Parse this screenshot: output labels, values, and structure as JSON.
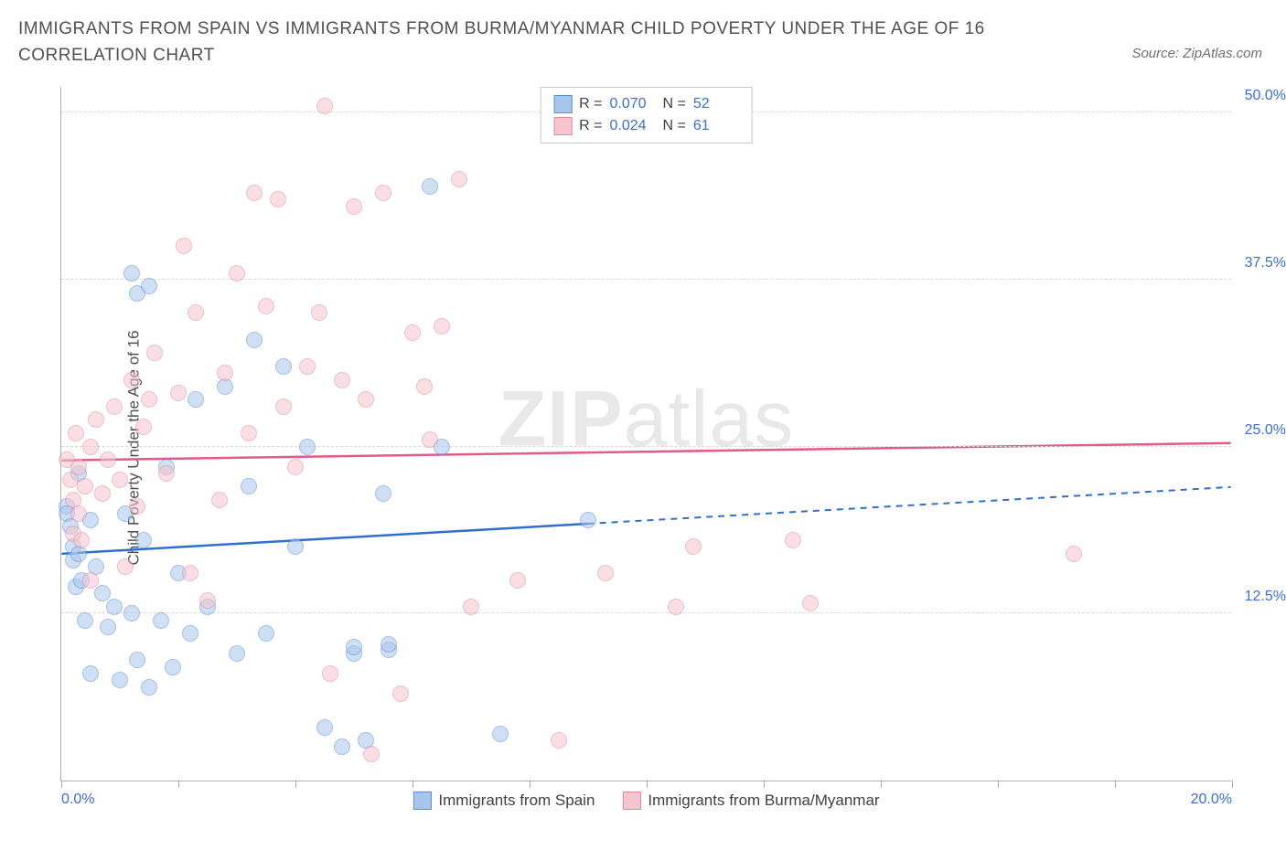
{
  "title": "IMMIGRANTS FROM SPAIN VS IMMIGRANTS FROM BURMA/MYANMAR CHILD POVERTY UNDER THE AGE OF 16 CORRELATION CHART",
  "source": "Source: ZipAtlas.com",
  "ylabel": "Child Poverty Under the Age of 16",
  "watermark_a": "ZIP",
  "watermark_b": "atlas",
  "chart": {
    "type": "scatter",
    "background_color": "#ffffff",
    "grid_color": "#d8d8d8",
    "axis_color": "#b0b0b0",
    "xlim": [
      0,
      20
    ],
    "ylim": [
      0,
      52
    ],
    "x_ticks": [
      0,
      2,
      4,
      6,
      8,
      10,
      12,
      14,
      16,
      18,
      20
    ],
    "x_tick_labels": {
      "0": "0.0%",
      "20": "20.0%"
    },
    "y_gridlines": [
      12.5,
      25,
      37.5,
      50
    ],
    "y_tick_labels": [
      "12.5%",
      "25.0%",
      "37.5%",
      "50.0%"
    ],
    "marker_radius": 9,
    "marker_opacity": 0.55,
    "label_color": "#3b6fd6",
    "series": [
      {
        "name": "Immigrants from Spain",
        "fill": "#a8c5ec",
        "stroke": "#5a8fd6",
        "trend_color": "#2f6fd0",
        "trend_y0": 17.0,
        "trend_y1": 22.0,
        "trend_solid_until": 9.0,
        "R": "0.070",
        "N": "52",
        "points": [
          [
            0.1,
            20.5
          ],
          [
            0.1,
            20.0
          ],
          [
            0.15,
            19.0
          ],
          [
            0.2,
            16.5
          ],
          [
            0.2,
            17.5
          ],
          [
            0.25,
            14.5
          ],
          [
            0.3,
            23.0
          ],
          [
            0.3,
            17.0
          ],
          [
            0.35,
            15.0
          ],
          [
            0.4,
            12.0
          ],
          [
            0.5,
            19.5
          ],
          [
            0.5,
            8.0
          ],
          [
            0.6,
            16.0
          ],
          [
            0.7,
            14.0
          ],
          [
            0.8,
            11.5
          ],
          [
            0.9,
            13.0
          ],
          [
            1.0,
            7.5
          ],
          [
            1.1,
            20.0
          ],
          [
            1.2,
            12.5
          ],
          [
            1.2,
            38.0
          ],
          [
            1.3,
            36.5
          ],
          [
            1.3,
            9.0
          ],
          [
            1.4,
            18.0
          ],
          [
            1.5,
            7.0
          ],
          [
            1.5,
            37.0
          ],
          [
            1.7,
            12.0
          ],
          [
            1.8,
            23.5
          ],
          [
            1.9,
            8.5
          ],
          [
            2.0,
            15.5
          ],
          [
            2.2,
            11.0
          ],
          [
            2.3,
            28.5
          ],
          [
            2.5,
            13.0
          ],
          [
            2.8,
            29.5
          ],
          [
            3.0,
            9.5
          ],
          [
            3.2,
            22.0
          ],
          [
            3.3,
            33.0
          ],
          [
            3.5,
            11.0
          ],
          [
            3.8,
            31.0
          ],
          [
            4.0,
            17.5
          ],
          [
            4.2,
            25.0
          ],
          [
            4.5,
            4.0
          ],
          [
            4.8,
            2.5
          ],
          [
            5.0,
            9.5
          ],
          [
            5.0,
            10.0
          ],
          [
            5.2,
            3.0
          ],
          [
            5.5,
            21.5
          ],
          [
            5.6,
            9.8
          ],
          [
            5.6,
            10.2
          ],
          [
            6.3,
            44.5
          ],
          [
            6.5,
            25.0
          ],
          [
            7.5,
            3.5
          ],
          [
            9.0,
            19.5
          ]
        ]
      },
      {
        "name": "Immigrants from Burma/Myanmar",
        "fill": "#f5c4cf",
        "stroke": "#e08aa0",
        "trend_color": "#e05a8a",
        "trend_y0": 24.0,
        "trend_y1": 25.3,
        "trend_solid_until": 20.0,
        "R": "0.024",
        "N": "61",
        "points": [
          [
            0.1,
            24.0
          ],
          [
            0.15,
            22.5
          ],
          [
            0.2,
            18.5
          ],
          [
            0.2,
            21.0
          ],
          [
            0.25,
            26.0
          ],
          [
            0.3,
            23.5
          ],
          [
            0.3,
            20.0
          ],
          [
            0.35,
            18.0
          ],
          [
            0.4,
            22.0
          ],
          [
            0.5,
            25.0
          ],
          [
            0.5,
            15.0
          ],
          [
            0.6,
            27.0
          ],
          [
            0.7,
            21.5
          ],
          [
            0.8,
            24.0
          ],
          [
            0.9,
            28.0
          ],
          [
            1.0,
            22.5
          ],
          [
            1.1,
            16.0
          ],
          [
            1.2,
            30.0
          ],
          [
            1.3,
            20.5
          ],
          [
            1.4,
            26.5
          ],
          [
            1.5,
            28.5
          ],
          [
            1.6,
            32.0
          ],
          [
            1.8,
            23.0
          ],
          [
            2.0,
            29.0
          ],
          [
            2.1,
            40.0
          ],
          [
            2.2,
            15.5
          ],
          [
            2.3,
            35.0
          ],
          [
            2.5,
            13.5
          ],
          [
            2.7,
            21.0
          ],
          [
            2.8,
            30.5
          ],
          [
            3.0,
            38.0
          ],
          [
            3.2,
            26.0
          ],
          [
            3.3,
            44.0
          ],
          [
            3.5,
            35.5
          ],
          [
            3.7,
            43.5
          ],
          [
            3.8,
            28.0
          ],
          [
            4.0,
            23.5
          ],
          [
            4.2,
            31.0
          ],
          [
            4.4,
            35.0
          ],
          [
            4.5,
            50.5
          ],
          [
            4.8,
            30.0
          ],
          [
            5.0,
            43.0
          ],
          [
            5.2,
            28.5
          ],
          [
            5.5,
            44.0
          ],
          [
            5.8,
            6.5
          ],
          [
            6.0,
            33.5
          ],
          [
            6.2,
            29.5
          ],
          [
            6.3,
            25.5
          ],
          [
            6.5,
            34.0
          ],
          [
            6.8,
            45.0
          ],
          [
            7.0,
            13.0
          ],
          [
            7.8,
            15.0
          ],
          [
            8.5,
            3.0
          ],
          [
            9.3,
            15.5
          ],
          [
            10.5,
            13.0
          ],
          [
            10.8,
            17.5
          ],
          [
            12.5,
            18.0
          ],
          [
            12.8,
            13.3
          ],
          [
            17.3,
            17.0
          ],
          [
            5.3,
            2.0
          ],
          [
            4.6,
            8.0
          ]
        ]
      }
    ]
  },
  "legend": {
    "r_label": "R =",
    "n_label": "N ="
  }
}
